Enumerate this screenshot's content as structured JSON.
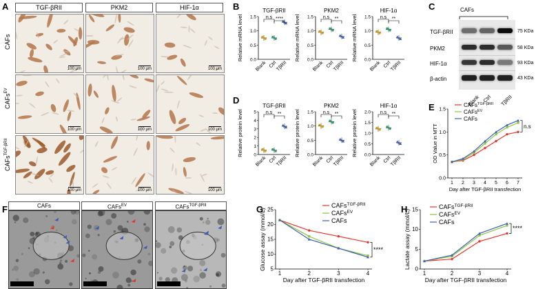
{
  "panel_labels": {
    "A": "A",
    "B": "B",
    "C": "C",
    "D": "D",
    "E": "E",
    "F": "F",
    "G": "G",
    "H": "H"
  },
  "panelA": {
    "columns": [
      "TGF-βRII",
      "PKM2",
      "HIF-1α"
    ],
    "rows": [
      "CAFs",
      "CAFs",
      "CAFs"
    ],
    "row_superscripts": [
      "",
      "EV",
      "TGF-βRII"
    ],
    "scale": "100 μm"
  },
  "chart_data": [
    {
      "id": "B1",
      "type": "scatter",
      "title": "TGF-βRII",
      "ylabel": "Relative mRNA level",
      "categories": [
        "Blank",
        "Ctrl",
        "TβRII"
      ],
      "values": [
        0.75,
        0.75,
        1.3
      ],
      "ylim": [
        0,
        1.5
      ],
      "yticks": [
        "0.0",
        "0.5",
        "1.0",
        "1.5"
      ],
      "annotations": [
        "n.s",
        "****"
      ]
    },
    {
      "id": "B2",
      "type": "scatter",
      "title": "PKM2",
      "ylabel": "Relative mRNA level",
      "categories": [
        "Blank",
        "Ctrl",
        "TβRII"
      ],
      "values": [
        0.95,
        1.05,
        0.8
      ],
      "ylim": [
        0,
        1.5
      ],
      "yticks": [
        "0.0",
        "0.5",
        "1.0",
        "1.5"
      ],
      "annotations": [
        "n.s",
        "**"
      ]
    },
    {
      "id": "B3",
      "type": "scatter",
      "title": "HIF-1α",
      "ylabel": "Relative mRNA level",
      "categories": [
        "Blank",
        "Ctrl",
        "TβRII"
      ],
      "values": [
        0.95,
        1.05,
        0.75
      ],
      "ylim": [
        0,
        1.5
      ],
      "yticks": [
        "0.0",
        "0.5",
        "1.0",
        "1.5"
      ],
      "annotations": [
        "n.s",
        "**"
      ]
    },
    {
      "id": "D1",
      "type": "scatter",
      "title": "TGF-βRII",
      "ylabel": "Relative protein level",
      "categories": [
        "Blank",
        "Ctrl",
        "TβRII"
      ],
      "values": [
        0.5,
        0.5,
        3.3
      ],
      "ylim": [
        0,
        5
      ],
      "yticks": [
        "0",
        "1",
        "2",
        "3",
        "4",
        "5"
      ],
      "annotations": [
        "n.s",
        "**"
      ]
    },
    {
      "id": "D2",
      "type": "scatter",
      "title": "PKM2",
      "ylabel": "Relative protein level",
      "categories": [
        "Blank",
        "Ctrl",
        "TβRII"
      ],
      "values": [
        1.0,
        1.15,
        0.5
      ],
      "ylim": [
        0,
        1.5
      ],
      "yticks": [
        "0.0",
        "0.5",
        "1.0",
        "1.5"
      ],
      "annotations": [
        "n.s",
        "**"
      ]
    },
    {
      "id": "D3",
      "type": "scatter",
      "title": "HIF-1α",
      "ylabel": "Relative protein level",
      "categories": [
        "Blank",
        "Ctrl",
        "TβRII"
      ],
      "values": [
        1.2,
        1.25,
        0.55
      ],
      "ylim": [
        0,
        2.0
      ],
      "yticks": [
        "0.0",
        "0.5",
        "1.0",
        "1.5",
        "2.0"
      ],
      "annotations": [
        "n.s",
        "**"
      ]
    },
    {
      "id": "E",
      "type": "line",
      "ylabel": "OD Value in MTT",
      "xlabel": "Day after TGF-βRII transfection",
      "x": [
        1,
        2,
        3,
        4,
        5,
        6,
        7
      ],
      "ylim": [
        0.0,
        1.5
      ],
      "yticks": [
        "0.0",
        "0.5",
        "1.0",
        "1.5"
      ],
      "series": [
        {
          "name": "CAFs",
          "sup": "TGF-βRII",
          "color": "#e8332a",
          "values": [
            0.35,
            0.38,
            0.5,
            0.65,
            0.8,
            0.95,
            1.0
          ]
        },
        {
          "name": "CAFs",
          "sup": "EV",
          "color": "#8cc63f",
          "values": [
            0.35,
            0.4,
            0.55,
            0.75,
            0.95,
            1.1,
            1.2
          ]
        },
        {
          "name": "CAFs",
          "sup": "",
          "color": "#3b5db5",
          "values": [
            0.35,
            0.42,
            0.58,
            0.8,
            1.0,
            1.15,
            1.25
          ]
        }
      ],
      "annotation": "n.s"
    },
    {
      "id": "G",
      "type": "line",
      "ylabel": "Glucose assay (mmol/L)",
      "xlabel": "Day after TGF-βRII transfection",
      "x": [
        1,
        2,
        3,
        4
      ],
      "ylim": [
        5,
        25
      ],
      "yticks": [
        "5",
        "10",
        "15",
        "20",
        "25"
      ],
      "series": [
        {
          "name": "CAFs",
          "sup": "TGF-βRII",
          "color": "#e8332a",
          "values": [
            21.5,
            18,
            16,
            14
          ]
        },
        {
          "name": "CAFs",
          "sup": "EV",
          "color": "#8cc63f",
          "values": [
            21.5,
            16,
            12,
            9.5
          ]
        },
        {
          "name": "CAFs",
          "sup": "",
          "color": "#3b5db5",
          "values": [
            21.5,
            15,
            12,
            9
          ]
        }
      ],
      "annotation": "****"
    },
    {
      "id": "H",
      "type": "line",
      "ylabel": "Lactate assay (mmol/L)",
      "xlabel": "Day after TGF-βRII transfection",
      "x": [
        1,
        2,
        3,
        4
      ],
      "ylim": [
        0,
        15
      ],
      "yticks": [
        "0",
        "5",
        "10",
        "15"
      ],
      "series": [
        {
          "name": "CAFs",
          "sup": "TGF-βRII",
          "color": "#e8332a",
          "values": [
            2,
            2.5,
            7,
            9
          ]
        },
        {
          "name": "CAFs",
          "sup": "EV",
          "color": "#8cc63f",
          "values": [
            2,
            3.2,
            8.5,
            11
          ]
        },
        {
          "name": "CAFs",
          "sup": "",
          "color": "#3b5db5",
          "values": [
            2,
            3.5,
            9,
            11.5
          ]
        }
      ],
      "annotation": "****"
    }
  ],
  "panelC": {
    "header": "CAFs",
    "lanes": [
      "Blank",
      "Ctrl",
      "TβRII"
    ],
    "proteins": [
      "TGF-βRII",
      "PKM2",
      "HIF-1α",
      "β-actin"
    ],
    "sizes": [
      "75 KDa",
      "58 KDa",
      "93 KDa",
      "43 KDa"
    ]
  },
  "panelF": {
    "headers": [
      "CAFs",
      "CAFs",
      "CAFs"
    ],
    "header_sups": [
      "",
      "EV",
      "TGF-βRII"
    ]
  }
}
